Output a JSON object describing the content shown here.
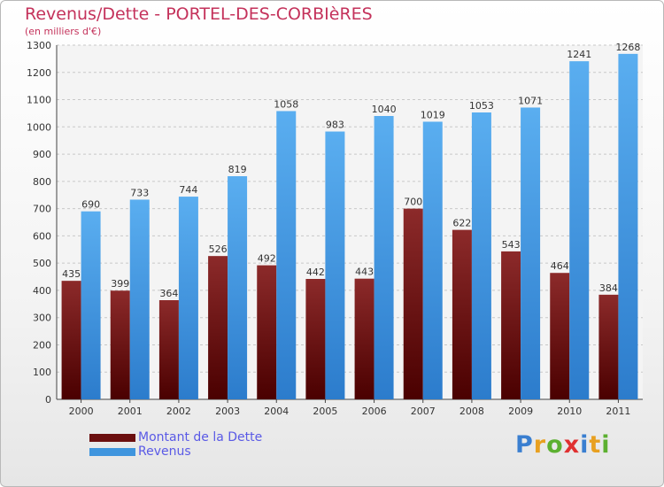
{
  "header": {
    "title": "Revenus/Dette - PORTEL-DES-CORBIèRES",
    "subtitle": "(en milliers d'€)"
  },
  "colors": {
    "dette": "#6b0f0f",
    "revenus": "#3f95de",
    "title": "#c4325b",
    "legend_text": "#5a5ae6"
  },
  "chart_data": {
    "type": "bar",
    "title": "Revenus/Dette - PORTEL-DES-CORBIèRES",
    "subtitle": "(en milliers d'€)",
    "categories": [
      "2000",
      "2001",
      "2002",
      "2003",
      "2004",
      "2005",
      "2006",
      "2007",
      "2008",
      "2009",
      "2010",
      "2011"
    ],
    "series": [
      {
        "name": "Montant de la Dette",
        "values": [
          435,
          399,
          364,
          526,
          492,
          442,
          443,
          700,
          622,
          543,
          464,
          384
        ]
      },
      {
        "name": "Revenus",
        "values": [
          690,
          733,
          744,
          819,
          1058,
          983,
          1040,
          1019,
          1053,
          1071,
          1241,
          1268
        ]
      }
    ],
    "ylim": [
      0,
      1300
    ],
    "yticks": [
      0,
      100,
      200,
      300,
      400,
      500,
      600,
      700,
      800,
      900,
      1000,
      1100,
      1200,
      1300
    ],
    "grid": true,
    "legend": "bottom-left"
  },
  "legend": {
    "items": [
      {
        "label": "Montant de la Dette",
        "color": "#6b0f0f"
      },
      {
        "label": "Revenus",
        "color": "#3f95de"
      }
    ]
  },
  "logo": {
    "letters": [
      "P",
      "r",
      "o",
      "x",
      "i",
      "t",
      "i"
    ],
    "colors": [
      "#3a7fd0",
      "#e8a020",
      "#5cb030",
      "#e03030",
      "#3a7fd0",
      "#e8a020",
      "#5cb030"
    ]
  }
}
